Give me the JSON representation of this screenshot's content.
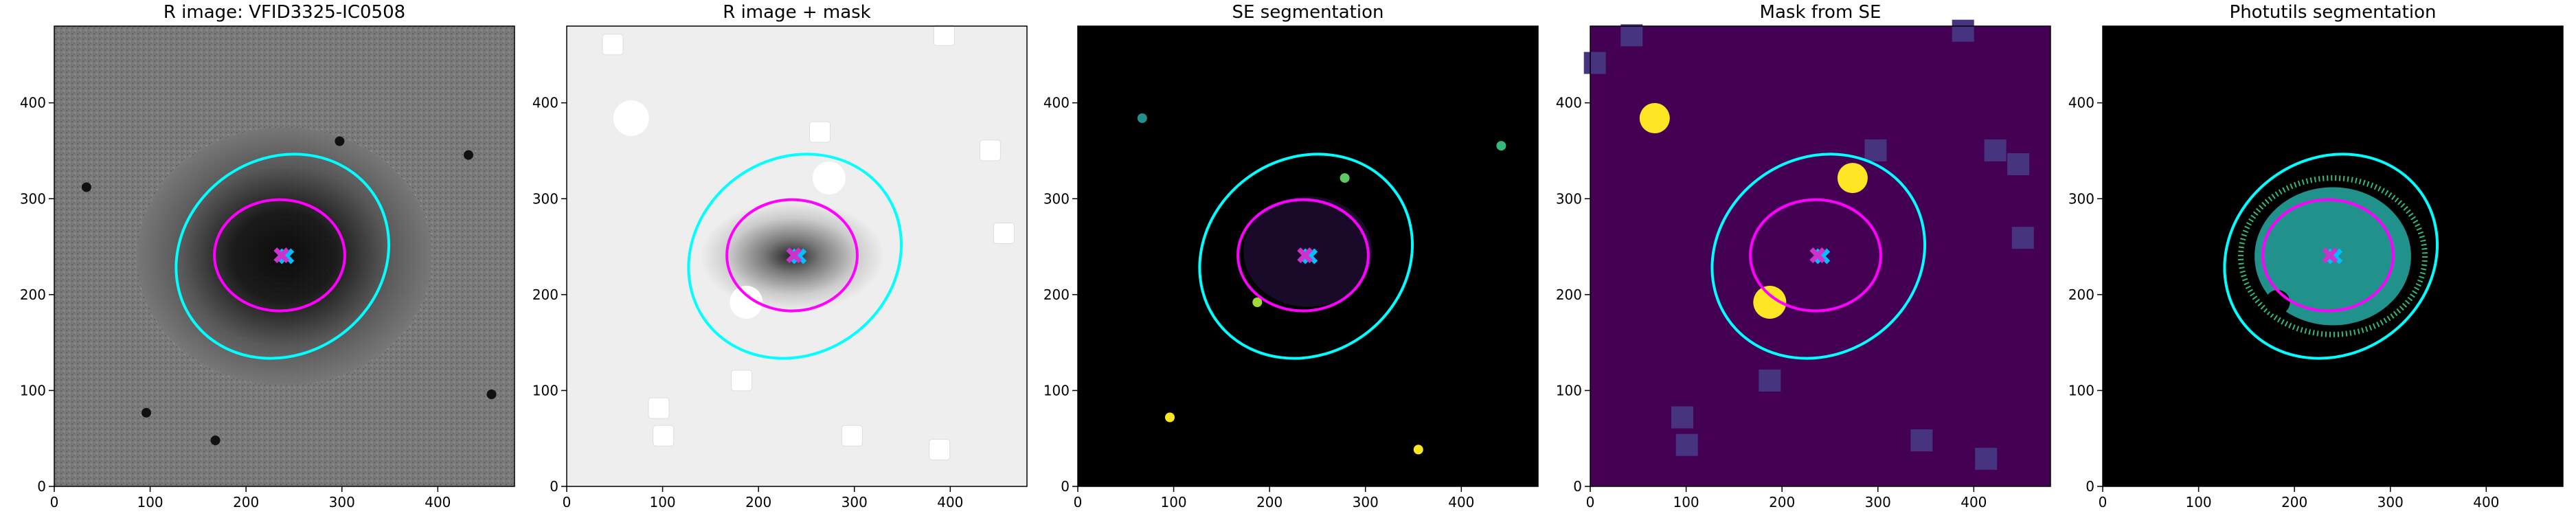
{
  "chart_data": [
    {
      "type": "image",
      "title": "R image: VFID3325-IC0508",
      "xlim": [
        0,
        480
      ],
      "ylim": [
        0,
        480
      ],
      "xticks": [
        0,
        100,
        200,
        300,
        400
      ],
      "yticks": [
        0,
        100,
        200,
        300,
        400
      ]
    },
    {
      "type": "image",
      "title": "R image + mask",
      "xlim": [
        0,
        480
      ],
      "ylim": [
        0,
        480
      ],
      "xticks": [
        0,
        100,
        200,
        300,
        400
      ],
      "yticks": [
        0,
        100,
        200,
        300,
        400
      ]
    },
    {
      "type": "image",
      "title": "SE segmentation",
      "xlim": [
        0,
        480
      ],
      "ylim": [
        0,
        480
      ],
      "xticks": [
        0,
        100,
        200,
        300,
        400
      ],
      "yticks": [
        0,
        100,
        200,
        300,
        400
      ]
    },
    {
      "type": "image",
      "title": "Mask from SE",
      "xlim": [
        0,
        480
      ],
      "ylim": [
        0,
        480
      ],
      "xticks": [
        0,
        100,
        200,
        300,
        400
      ],
      "yticks": [
        0,
        100,
        200,
        300,
        400
      ]
    },
    {
      "type": "image",
      "title": "Photutils segmentation",
      "xlim": [
        0,
        480
      ],
      "ylim": [
        0,
        480
      ],
      "xticks": [
        0,
        100,
        200,
        300,
        400
      ],
      "yticks": [
        0,
        100,
        200,
        300,
        400
      ]
    }
  ]
}
